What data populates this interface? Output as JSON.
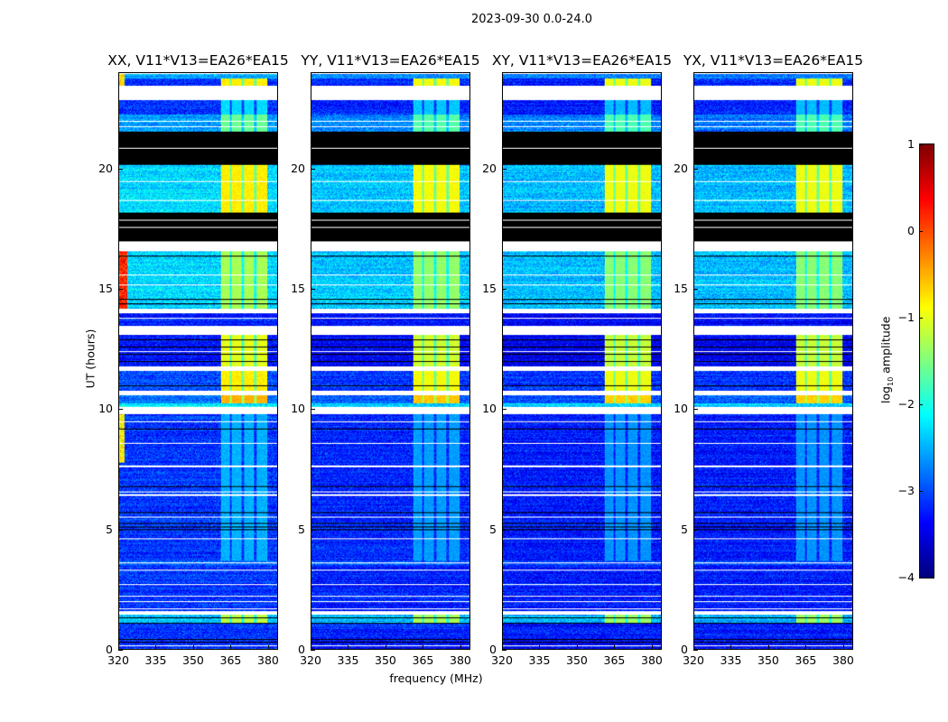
{
  "chart_data": {
    "type": "heatmap",
    "title": "2023-09-30 0.0-24.0",
    "xlabel": "frequency (MHz)",
    "ylabel": "UT (hours)",
    "xlim": [
      320,
      384
    ],
    "ylim": [
      0,
      24
    ],
    "xticks": [
      "320",
      "335",
      "350",
      "365",
      "380"
    ],
    "xtick_values": [
      320,
      335,
      350,
      365,
      380
    ],
    "yticks": [
      "0",
      "5",
      "10",
      "15",
      "20"
    ],
    "ytick_values": [
      0,
      5,
      10,
      15,
      20
    ],
    "colorbar": {
      "label_main": "log",
      "label_sub": "10",
      "label_tail": " amplitude",
      "range": [
        -4,
        1
      ],
      "ticks": [
        "1",
        "0",
        "−1",
        "−2",
        "−3",
        "−4"
      ],
      "tick_values": [
        1,
        0,
        -1,
        -2,
        -3,
        -4
      ],
      "colormap": "jet"
    },
    "bright_channel_bands_mhz": [
      [
        361,
        364.5
      ],
      [
        365.5,
        369.5
      ],
      [
        370.5,
        374.5
      ],
      [
        375.5,
        380
      ]
    ],
    "time_segments": [
      {
        "t": [
          0,
          0.3
        ],
        "kind": "data",
        "level": -3.2
      },
      {
        "t": [
          0.3,
          1.1
        ],
        "kind": "data",
        "level": -3.1
      },
      {
        "t": [
          1.1,
          1.45
        ],
        "kind": "data",
        "level": -2.4,
        "bright": -1.2
      },
      {
        "t": [
          1.45,
          1.6
        ],
        "kind": "white"
      },
      {
        "t": [
          1.6,
          3.5
        ],
        "kind": "data",
        "level": -3.1
      },
      {
        "t": [
          3.5,
          3.7
        ],
        "kind": "data",
        "level": -2.8
      },
      {
        "t": [
          3.7,
          9.8
        ],
        "kind": "data",
        "level": -3.1,
        "bright": -2.5
      },
      {
        "t": [
          9.8,
          10.1
        ],
        "kind": "white"
      },
      {
        "t": [
          10.1,
          10.25
        ],
        "kind": "data",
        "level": -2.2
      },
      {
        "t": [
          10.25,
          10.6
        ],
        "kind": "data",
        "level": -2.8,
        "bright": -0.5
      },
      {
        "t": [
          10.6,
          10.8
        ],
        "kind": "white"
      },
      {
        "t": [
          10.8,
          11.6
        ],
        "kind": "data",
        "level": -3.0,
        "bright": -0.8
      },
      {
        "t": [
          11.6,
          11.8
        ],
        "kind": "white"
      },
      {
        "t": [
          11.8,
          13.1
        ],
        "kind": "data",
        "level": -3.3,
        "bright": -1.0
      },
      {
        "t": [
          13.1,
          13.5
        ],
        "kind": "white"
      },
      {
        "t": [
          13.5,
          14.0
        ],
        "kind": "data",
        "level": -3.2
      },
      {
        "t": [
          14.0,
          14.2
        ],
        "kind": "white"
      },
      {
        "t": [
          14.2,
          16.6
        ],
        "kind": "data",
        "level": -2.3,
        "bright": -1.3
      },
      {
        "t": [
          16.6,
          17.0
        ],
        "kind": "white"
      },
      {
        "t": [
          17.0,
          17.4
        ],
        "kind": "black"
      },
      {
        "t": [
          17.4,
          18.2
        ],
        "kind": "black"
      },
      {
        "t": [
          18.2,
          20.2
        ],
        "kind": "data",
        "level": -2.3,
        "bright": -0.8
      },
      {
        "t": [
          20.2,
          21.6
        ],
        "kind": "black"
      },
      {
        "t": [
          21.6,
          22.3
        ],
        "kind": "data",
        "level": -2.6,
        "bright": -1.6
      },
      {
        "t": [
          22.3,
          22.9
        ],
        "kind": "data",
        "level": -3.1,
        "bright": -2.3
      },
      {
        "t": [
          22.9,
          23.5
        ],
        "kind": "white"
      },
      {
        "t": [
          23.5,
          23.8
        ],
        "kind": "data",
        "level": -3.1,
        "bright": -0.8
      },
      {
        "t": [
          23.8,
          24
        ],
        "kind": "data",
        "level": -2.6
      }
    ],
    "white_lines_hours": [
      0.15,
      1.7,
      2.0,
      2.2,
      2.7,
      3.3,
      3.6,
      4.6,
      5.5,
      6.4,
      6.45,
      6.55,
      7.6,
      7.65,
      8.6,
      9.5,
      12.4,
      13.8,
      15.6,
      15.2,
      17.6,
      17.9,
      18.7,
      19.5,
      20.9,
      21.8,
      22.0
    ],
    "black_lines_hours": [
      0.3,
      0.4,
      1.1,
      1.3,
      5.0,
      5.1,
      5.25,
      5.7,
      6.8,
      9.2,
      11.0,
      12.0,
      12.3,
      12.6,
      12.9,
      14.4,
      14.6,
      16.4
    ],
    "panels": [
      {
        "title": "XX, V11*V13=EA26*EA15",
        "hot_left_edge": true,
        "offset": 0.0
      },
      {
        "title": "YY, V11*V13=EA26*EA15",
        "hot_left_edge": false,
        "offset": -0.1
      },
      {
        "title": "XY, V11*V13=EA26*EA15",
        "hot_left_edge": false,
        "offset": -0.15
      },
      {
        "title": "YX, V11*V13=EA26*EA15",
        "hot_left_edge": false,
        "offset": -0.15
      }
    ]
  }
}
